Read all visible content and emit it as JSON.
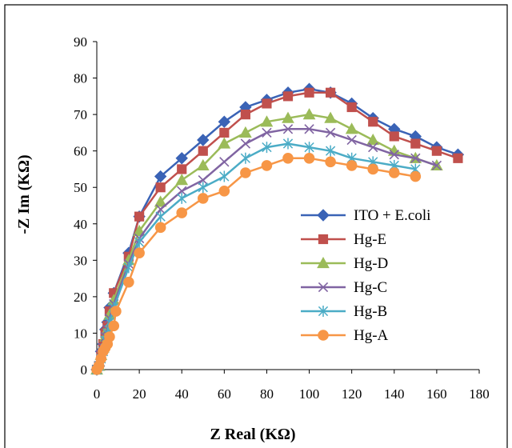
{
  "chart_data": {
    "type": "line",
    "xlabel": "Z  Real (KΩ)",
    "ylabel": "-Z Im (KΩ)",
    "xlim": [
      0,
      180
    ],
    "ylim": [
      0,
      90
    ],
    "xticks": [
      "0",
      "20",
      "40",
      "60",
      "80",
      "100",
      "120",
      "140",
      "160",
      "180"
    ],
    "yticks": [
      "0",
      "10",
      "20",
      "30",
      "40",
      "50",
      "60",
      "70",
      "80",
      "90"
    ],
    "grid": false,
    "legend_position": "center-right",
    "series": [
      {
        "name": "ITO + E.coli",
        "marker": "diamond",
        "color": "#3a63b6",
        "points": [
          [
            0,
            0
          ],
          [
            1,
            1
          ],
          [
            2,
            5
          ],
          [
            3,
            7
          ],
          [
            4,
            11
          ],
          [
            5,
            13
          ],
          [
            6,
            17
          ],
          [
            8,
            21
          ],
          [
            15,
            32
          ],
          [
            20,
            42
          ],
          [
            30,
            53
          ],
          [
            40,
            58
          ],
          [
            50,
            63
          ],
          [
            60,
            68
          ],
          [
            70,
            72
          ],
          [
            80,
            74
          ],
          [
            90,
            76
          ],
          [
            100,
            77
          ],
          [
            110,
            76
          ],
          [
            120,
            73
          ],
          [
            130,
            69
          ],
          [
            140,
            66
          ],
          [
            150,
            64
          ],
          [
            160,
            61
          ],
          [
            170,
            59
          ]
        ]
      },
      {
        "name": "Hg-E",
        "marker": "square",
        "color": "#c0504d",
        "points": [
          [
            0,
            0
          ],
          [
            1,
            1
          ],
          [
            2,
            4
          ],
          [
            3,
            7
          ],
          [
            4,
            10
          ],
          [
            5,
            12
          ],
          [
            6,
            16
          ],
          [
            8,
            21
          ],
          [
            15,
            31
          ],
          [
            20,
            42
          ],
          [
            30,
            50
          ],
          [
            40,
            55
          ],
          [
            50,
            60
          ],
          [
            60,
            65
          ],
          [
            70,
            70
          ],
          [
            80,
            73
          ],
          [
            90,
            75
          ],
          [
            100,
            76
          ],
          [
            110,
            76
          ],
          [
            120,
            72
          ],
          [
            130,
            68
          ],
          [
            140,
            64
          ],
          [
            150,
            62
          ],
          [
            160,
            60
          ],
          [
            170,
            58
          ]
        ]
      },
      {
        "name": "Hg-D",
        "marker": "triangle",
        "color": "#9bbb59",
        "points": [
          [
            0,
            0
          ],
          [
            1,
            1
          ],
          [
            2,
            4
          ],
          [
            3,
            6
          ],
          [
            4,
            9
          ],
          [
            5,
            11
          ],
          [
            6,
            15
          ],
          [
            8,
            19
          ],
          [
            15,
            30
          ],
          [
            20,
            38
          ],
          [
            30,
            46
          ],
          [
            40,
            52
          ],
          [
            50,
            56
          ],
          [
            60,
            62
          ],
          [
            70,
            65
          ],
          [
            80,
            68
          ],
          [
            90,
            69
          ],
          [
            100,
            70
          ],
          [
            110,
            69
          ],
          [
            120,
            66
          ],
          [
            130,
            63
          ],
          [
            140,
            60
          ],
          [
            150,
            58
          ],
          [
            160,
            56
          ]
        ]
      },
      {
        "name": "Hg-C",
        "marker": "x",
        "color": "#8064a2",
        "points": [
          [
            0,
            0
          ],
          [
            1,
            1
          ],
          [
            2,
            4
          ],
          [
            3,
            6
          ],
          [
            4,
            9
          ],
          [
            5,
            11
          ],
          [
            6,
            14
          ],
          [
            8,
            18
          ],
          [
            15,
            29
          ],
          [
            20,
            36
          ],
          [
            30,
            44
          ],
          [
            40,
            49
          ],
          [
            50,
            52
          ],
          [
            60,
            57
          ],
          [
            70,
            62
          ],
          [
            80,
            65
          ],
          [
            90,
            66
          ],
          [
            100,
            66
          ],
          [
            110,
            65
          ],
          [
            120,
            63
          ],
          [
            130,
            61
          ],
          [
            140,
            59
          ],
          [
            150,
            58
          ],
          [
            160,
            56
          ]
        ]
      },
      {
        "name": "Hg-B",
        "marker": "star",
        "color": "#4bacc6",
        "points": [
          [
            0,
            0
          ],
          [
            1,
            1
          ],
          [
            2,
            3
          ],
          [
            3,
            5
          ],
          [
            4,
            8
          ],
          [
            5,
            10
          ],
          [
            6,
            13
          ],
          [
            8,
            17
          ],
          [
            15,
            28
          ],
          [
            20,
            35
          ],
          [
            30,
            42
          ],
          [
            40,
            47
          ],
          [
            50,
            50
          ],
          [
            60,
            53
          ],
          [
            70,
            58
          ],
          [
            80,
            61
          ],
          [
            90,
            62
          ],
          [
            100,
            61
          ],
          [
            110,
            60
          ],
          [
            120,
            58
          ],
          [
            130,
            57
          ],
          [
            140,
            56
          ],
          [
            150,
            55
          ]
        ]
      },
      {
        "name": "Hg-A",
        "marker": "circle",
        "color": "#f79646",
        "points": [
          [
            0,
            0
          ],
          [
            1,
            1
          ],
          [
            2,
            3
          ],
          [
            3,
            5
          ],
          [
            4,
            6
          ],
          [
            5,
            7
          ],
          [
            6,
            9
          ],
          [
            8,
            12
          ],
          [
            9,
            16
          ],
          [
            15,
            24
          ],
          [
            20,
            32
          ],
          [
            30,
            39
          ],
          [
            40,
            43
          ],
          [
            50,
            47
          ],
          [
            60,
            49
          ],
          [
            70,
            54
          ],
          [
            80,
            56
          ],
          [
            90,
            58
          ],
          [
            100,
            58
          ],
          [
            110,
            57
          ],
          [
            120,
            56
          ],
          [
            130,
            55
          ],
          [
            140,
            54
          ],
          [
            150,
            53
          ]
        ]
      }
    ]
  }
}
